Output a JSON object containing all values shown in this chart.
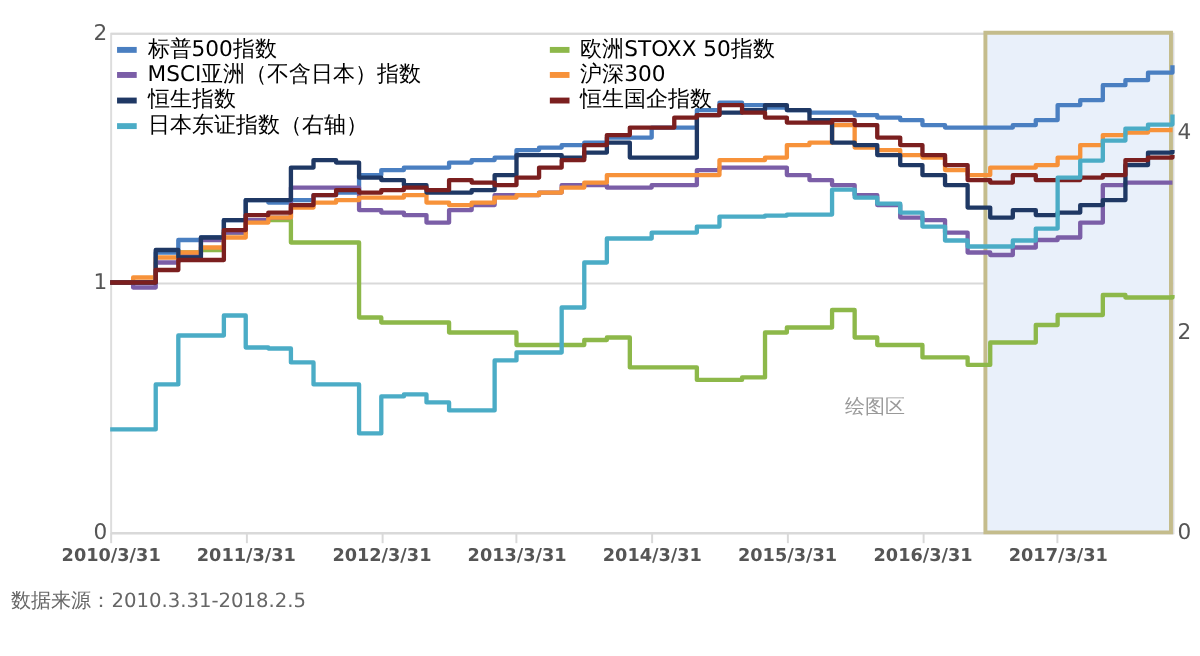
{
  "chart_data": {
    "type": "step",
    "x": [
      "2010-03-31",
      "2010-06",
      "2010-08",
      "2010-10",
      "2010-12",
      "2011-02",
      "2011-04",
      "2011-06",
      "2011-08",
      "2011-10",
      "2011-12",
      "2012-02",
      "2012-04",
      "2012-06",
      "2012-08",
      "2012-10",
      "2012-12",
      "2013-02",
      "2013-04",
      "2013-06",
      "2013-08",
      "2013-10",
      "2013-12",
      "2014-02",
      "2014-04",
      "2014-06",
      "2014-08",
      "2014-10",
      "2014-12",
      "2015-02",
      "2015-04",
      "2015-06",
      "2015-08",
      "2015-10",
      "2015-12",
      "2016-02",
      "2016-04",
      "2016-06",
      "2016-08",
      "2016-10",
      "2016-12",
      "2017-02",
      "2017-04",
      "2017-06",
      "2017-08",
      "2017-10",
      "2017-12",
      "2018-02-05"
    ],
    "series": [
      {
        "name": "标普500指数",
        "color": "#4a7fc1",
        "values": [
          1.0,
          1.0,
          1.12,
          1.17,
          1.18,
          1.25,
          1.33,
          1.32,
          1.33,
          1.35,
          1.36,
          1.43,
          1.45,
          1.46,
          1.46,
          1.48,
          1.49,
          1.5,
          1.53,
          1.54,
          1.55,
          1.56,
          1.58,
          1.58,
          1.62,
          1.62,
          1.69,
          1.72,
          1.71,
          1.7,
          1.69,
          1.68,
          1.68,
          1.67,
          1.66,
          1.65,
          1.63,
          1.62,
          1.62,
          1.62,
          1.63,
          1.65,
          1.71,
          1.73,
          1.79,
          1.81,
          1.84,
          1.87
        ]
      },
      {
        "name": "欧洲STOXX 50指数",
        "color": "#8db84a",
        "values": [
          null,
          null,
          null,
          1.12,
          1.13,
          1.2,
          1.25,
          1.25,
          1.16,
          1.16,
          1.16,
          0.86,
          0.84,
          0.84,
          0.84,
          0.8,
          0.8,
          0.8,
          0.75,
          0.75,
          0.75,
          0.77,
          0.78,
          0.66,
          0.66,
          0.66,
          0.61,
          0.61,
          0.62,
          0.8,
          0.82,
          0.82,
          0.89,
          0.78,
          0.75,
          0.75,
          0.7,
          0.7,
          0.67,
          0.76,
          0.76,
          0.83,
          0.87,
          0.87,
          0.95,
          0.94,
          0.94,
          0.95
        ]
      },
      {
        "name": "MSCI亚洲（不含日本）指数",
        "color": "#7b5ea7",
        "values": [
          1.0,
          0.98,
          1.08,
          1.11,
          1.17,
          1.2,
          1.25,
          1.26,
          1.38,
          1.38,
          1.38,
          1.29,
          1.28,
          1.27,
          1.24,
          1.29,
          1.31,
          1.35,
          1.35,
          1.36,
          1.39,
          1.39,
          1.38,
          1.38,
          1.39,
          1.39,
          1.45,
          1.46,
          1.46,
          1.46,
          1.43,
          1.41,
          1.39,
          1.35,
          1.31,
          1.26,
          1.25,
          1.2,
          1.12,
          1.11,
          1.14,
          1.17,
          1.18,
          1.24,
          1.39,
          1.4,
          1.4,
          1.4
        ]
      },
      {
        "name": "沪深300",
        "color": "#f7923a",
        "values": [
          1.0,
          1.02,
          1.1,
          1.12,
          1.14,
          1.18,
          1.24,
          1.26,
          1.3,
          1.32,
          1.33,
          1.34,
          1.34,
          1.35,
          1.32,
          1.31,
          1.32,
          1.34,
          1.35,
          1.36,
          1.38,
          1.4,
          1.43,
          1.43,
          1.43,
          1.43,
          1.43,
          1.49,
          1.49,
          1.5,
          1.55,
          1.56,
          1.63,
          1.54,
          1.53,
          1.51,
          1.5,
          1.45,
          1.43,
          1.46,
          1.46,
          1.47,
          1.5,
          1.55,
          1.59,
          1.6,
          1.61,
          1.61
        ]
      },
      {
        "name": "恒生指数",
        "color": "#1f3864",
        "values": [
          1.0,
          1.0,
          1.13,
          1.1,
          1.18,
          1.25,
          1.33,
          1.33,
          1.46,
          1.49,
          1.48,
          1.42,
          1.41,
          1.39,
          1.36,
          1.36,
          1.37,
          1.43,
          1.51,
          1.51,
          1.5,
          1.52,
          1.56,
          1.5,
          1.5,
          1.5,
          1.67,
          1.68,
          1.69,
          1.71,
          1.69,
          1.65,
          1.56,
          1.55,
          1.51,
          1.47,
          1.43,
          1.39,
          1.3,
          1.26,
          1.29,
          1.27,
          1.28,
          1.31,
          1.33,
          1.47,
          1.52,
          1.53
        ]
      },
      {
        "name": "恒生国企指数",
        "color": "#7b1f1f",
        "values": [
          1.0,
          1.0,
          1.05,
          1.09,
          1.09,
          1.21,
          1.27,
          1.28,
          1.31,
          1.35,
          1.37,
          1.36,
          1.37,
          1.38,
          1.37,
          1.41,
          1.4,
          1.39,
          1.42,
          1.46,
          1.49,
          1.55,
          1.59,
          1.62,
          1.62,
          1.66,
          1.67,
          1.71,
          1.68,
          1.66,
          1.64,
          1.64,
          1.65,
          1.63,
          1.58,
          1.55,
          1.51,
          1.47,
          1.41,
          1.4,
          1.43,
          1.41,
          1.41,
          1.42,
          1.43,
          1.49,
          1.5,
          1.51
        ]
      },
      {
        "name": "日本东证指数（右轴）",
        "color": "#4bacc6",
        "axis": "y2",
        "values": [
          1.03,
          1.03,
          1.48,
          1.97,
          1.97,
          2.17,
          1.85,
          1.84,
          1.7,
          1.48,
          1.48,
          0.99,
          1.36,
          1.38,
          1.3,
          1.22,
          1.22,
          1.72,
          1.8,
          1.8,
          2.25,
          2.7,
          2.94,
          2.94,
          3.0,
          3.0,
          3.06,
          3.16,
          3.16,
          3.17,
          3.18,
          3.18,
          3.43,
          3.35,
          3.29,
          3.2,
          3.06,
          2.92,
          2.86,
          2.86,
          2.92,
          3.04,
          3.55,
          3.72,
          3.92,
          4.04,
          4.08,
          4.18
        ]
      }
    ],
    "xlim": [
      "2010-03-31",
      "2018-02-05"
    ],
    "xticks": [
      {
        "value": "2010-03-31",
        "label": "2010/3/31"
      },
      {
        "value": "2011-03-31",
        "label": "2011/3/31"
      },
      {
        "value": "2012-03-31",
        "label": "2012/3/31"
      },
      {
        "value": "2013-03-31",
        "label": "2013/3/31"
      },
      {
        "value": "2014-03-31",
        "label": "2014/3/31"
      },
      {
        "value": "2015-03-31",
        "label": "2015/3/31"
      },
      {
        "value": "2016-03-31",
        "label": "2016/3/31"
      },
      {
        "value": "2017-03-31",
        "label": "2017/3/31"
      }
    ],
    "ylim": [
      0,
      2
    ],
    "yticks": [
      0,
      1,
      2
    ],
    "y2lim": [
      0,
      5
    ],
    "y2ticks": [
      0,
      2,
      4
    ],
    "bands": [
      {
        "axis": "x",
        "from": "2016-09-18",
        "to": "2018-02-01",
        "color": "#e9f0fa"
      }
    ],
    "grid": "y",
    "legend": "top left",
    "annotations": [
      "绘图区",
      "数据来源：2010.3.31-2018.2.5"
    ]
  }
}
